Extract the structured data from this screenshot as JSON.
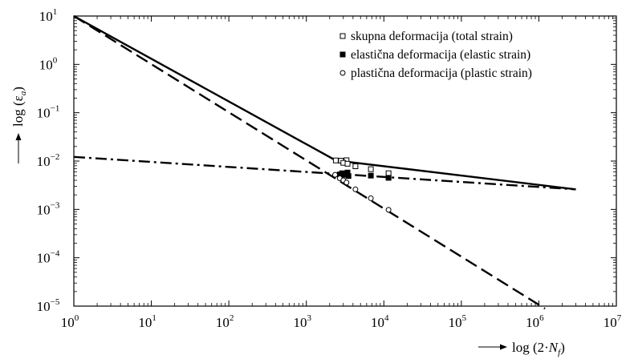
{
  "chart_data": {
    "type": "line",
    "x_scale": "log",
    "y_scale": "log",
    "xlim": [
      1,
      10000000
    ],
    "ylim": [
      1e-05,
      10
    ],
    "x_ticks": [
      {
        "base": "10",
        "exp": "0",
        "value": 1
      },
      {
        "base": "10",
        "exp": "1",
        "value": 10
      },
      {
        "base": "10",
        "exp": "2",
        "value": 100
      },
      {
        "base": "10",
        "exp": "3",
        "value": 1000
      },
      {
        "base": "10",
        "exp": "4",
        "value": 10000
      },
      {
        "base": "10",
        "exp": "5",
        "value": 100000
      },
      {
        "base": "10",
        "exp": "6",
        "value": 1000000
      },
      {
        "base": "10",
        "exp": "7",
        "value": 10000000
      }
    ],
    "y_ticks": [
      {
        "base": "10",
        "exp": "1",
        "value": 10
      },
      {
        "base": "10",
        "exp": "0",
        "value": 1
      },
      {
        "base": "10",
        "exp": "−1",
        "value": 0.1
      },
      {
        "base": "10",
        "exp": "−2",
        "value": 0.01
      },
      {
        "base": "10",
        "exp": "−3",
        "value": 0.001
      },
      {
        "base": "10",
        "exp": "−4",
        "value": 0.0001
      },
      {
        "base": "10",
        "exp": "−5",
        "value": 1e-05
      }
    ],
    "xlabel": {
      "prefix": "log (2·",
      "var": "N",
      "sub": "f",
      "suffix": ")"
    },
    "ylabel": {
      "prefix": "log (ε",
      "sub": "a",
      "suffix": ")"
    },
    "grid": false,
    "legend_position": "top-right",
    "series": [
      {
        "name": "skupna deformacija (total strain)",
        "line_style": "solid",
        "marker": "open-square",
        "line": [
          [
            1,
            10
          ],
          [
            2400,
            0.0103
          ],
          [
            3000000,
            0.0026
          ]
        ],
        "points": [
          [
            2400,
            0.0103
          ],
          [
            2800,
            0.0102
          ],
          [
            3300,
            0.0104
          ],
          [
            3000,
            0.0092
          ],
          [
            3400,
            0.0088
          ],
          [
            4300,
            0.0078
          ],
          [
            6800,
            0.0068
          ],
          [
            11500,
            0.0056
          ]
        ]
      },
      {
        "name": "elastična deformacija (elastic strain)",
        "line_style": "dash-dot",
        "marker": "filled-square",
        "line": [
          [
            1,
            0.0122
          ],
          [
            3000000,
            0.0026
          ]
        ],
        "points": [
          [
            2700,
            0.0053
          ],
          [
            2900,
            0.0056
          ],
          [
            3100,
            0.0052
          ],
          [
            3400,
            0.0058
          ],
          [
            3500,
            0.0049
          ],
          [
            6800,
            0.005
          ],
          [
            11500,
            0.0045
          ]
        ]
      },
      {
        "name": "plastična deformacija (plastic strain)",
        "line_style": "dashed",
        "marker": "open-circle",
        "line": [
          [
            1,
            10
          ],
          [
            1200000,
            8.9e-06
          ]
        ],
        "points": [
          [
            2350,
            0.0052
          ],
          [
            2700,
            0.0044
          ],
          [
            3000,
            0.004
          ],
          [
            3300,
            0.0036
          ],
          [
            4300,
            0.0026
          ],
          [
            6800,
            0.0017
          ],
          [
            11500,
            0.00098
          ]
        ]
      }
    ]
  }
}
